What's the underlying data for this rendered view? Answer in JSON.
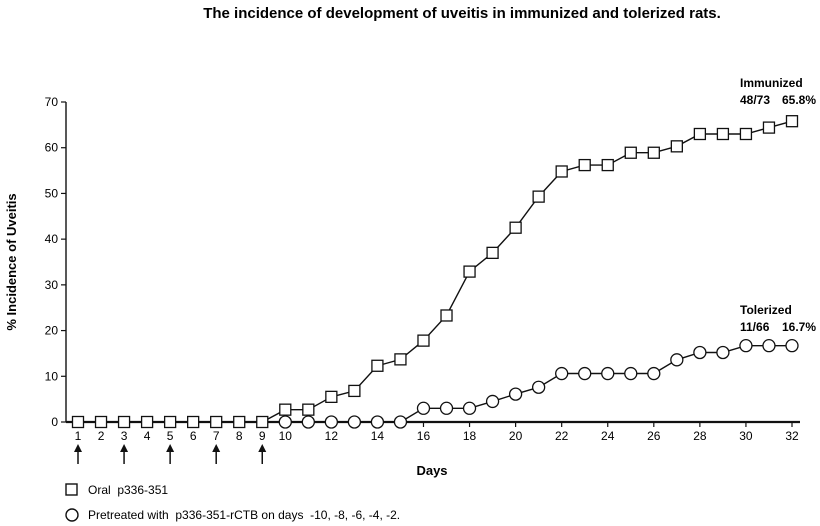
{
  "chart_data": {
    "type": "line",
    "title": "The incidence of development of uveitis in immunized and tolerized rats.",
    "xlabel": "Days",
    "ylabel": "% Incidence of Uveitis",
    "xlim": [
      1,
      32
    ],
    "ylim": [
      0,
      70
    ],
    "x_ticks": [
      1,
      2,
      3,
      4,
      5,
      6,
      7,
      8,
      9,
      10,
      12,
      14,
      16,
      18,
      20,
      22,
      24,
      26,
      28,
      30,
      32
    ],
    "y_ticks": [
      0,
      10,
      20,
      30,
      40,
      50,
      60,
      70
    ],
    "arrow_days": [
      1,
      3,
      5,
      7,
      9
    ],
    "series": [
      {
        "legend": "Oral  p336-351",
        "marker": "square",
        "x": [
          1,
          2,
          3,
          4,
          5,
          6,
          7,
          8,
          9,
          10,
          11,
          12,
          13,
          14,
          15,
          16,
          17,
          18,
          19,
          20,
          21,
          22,
          23,
          24,
          25,
          26,
          27,
          28,
          29,
          30,
          31,
          32
        ],
        "values": [
          0,
          0,
          0,
          0,
          0,
          0,
          0,
          0,
          0,
          2.7,
          2.7,
          5.5,
          6.8,
          12.3,
          13.7,
          17.8,
          23.3,
          32.9,
          37.0,
          42.5,
          49.3,
          54.8,
          56.2,
          56.2,
          58.9,
          58.9,
          60.3,
          63.0,
          63.0,
          63.0,
          64.4,
          65.8
        ]
      },
      {
        "legend": "Pretreated with  p336-351-rCTB on days  -10, -8, -6, -4, -2.",
        "marker": "circle",
        "x": [
          10,
          11,
          12,
          13,
          14,
          15,
          16,
          17,
          18,
          19,
          20,
          21,
          22,
          23,
          24,
          25,
          26,
          27,
          28,
          29,
          30,
          31,
          32
        ],
        "values": [
          0,
          0,
          0,
          0,
          0,
          0,
          3.0,
          3.0,
          3.0,
          4.5,
          6.1,
          7.6,
          10.6,
          10.6,
          10.6,
          10.6,
          10.6,
          13.6,
          15.2,
          15.2,
          16.7,
          16.7,
          16.7
        ]
      }
    ],
    "annotations": [
      {
        "name": "Immunized",
        "fraction": "48/73",
        "percent": "65.8%"
      },
      {
        "name": "Tolerized",
        "fraction": "11/66",
        "percent": "16.7%"
      }
    ],
    "grid": false
  }
}
